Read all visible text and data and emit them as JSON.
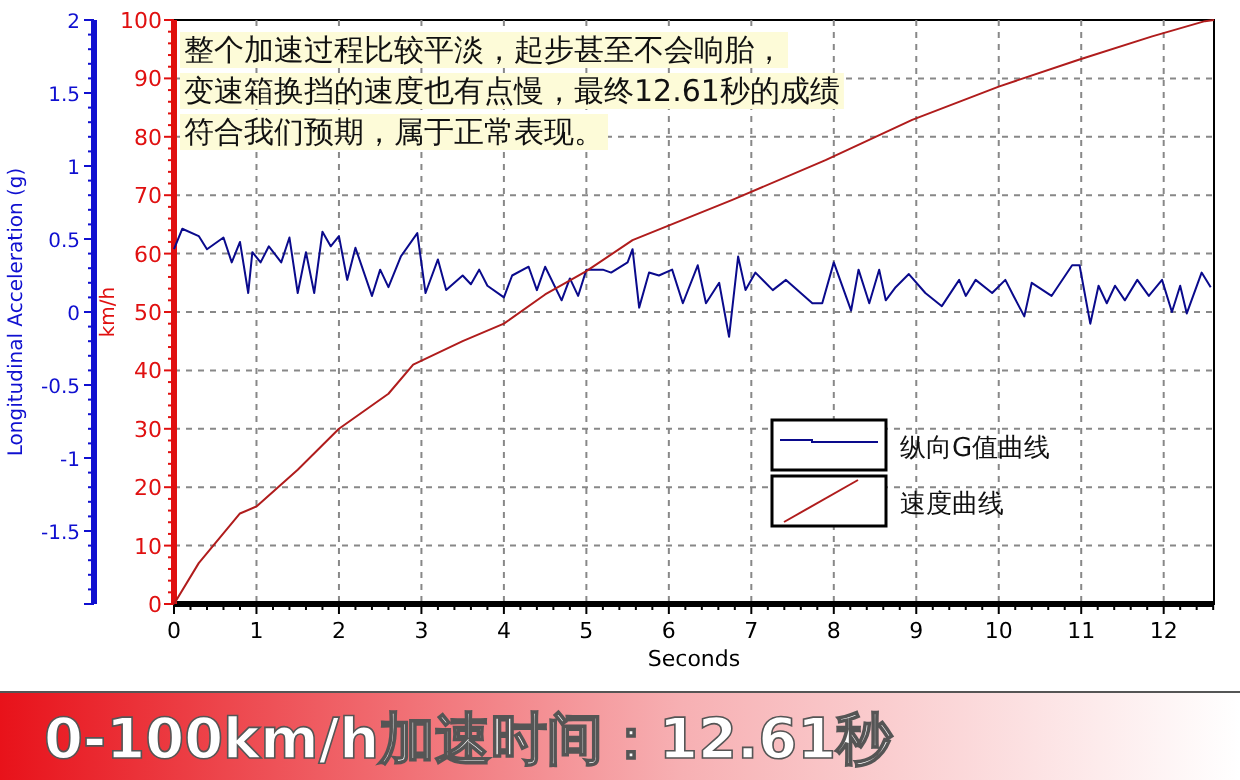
{
  "chart_data": {
    "type": "line",
    "title": "0-100km/h加速时间：12.61秒",
    "xlabel": "Seconds",
    "ylabel": "km/h",
    "y2label": "Longitudinal Acceleration (g)",
    "annotations": [
      "整个加速过程比较平淡，起步甚至不会响胎，",
      "变速箱换挡的速度也有点慢，最终12.61秒的成绩",
      "符合我们预期，属于正常表现。"
    ],
    "xlim": [
      0,
      12.61
    ],
    "xticks": [
      0,
      1,
      2,
      3,
      4,
      5,
      6,
      7,
      8,
      9,
      10,
      11,
      12
    ],
    "ylim": [
      0,
      100
    ],
    "yticks": [
      0,
      10,
      20,
      30,
      40,
      50,
      60,
      70,
      80,
      90,
      100
    ],
    "y2lim": [
      -2,
      2
    ],
    "y2ticks": [
      {
        "value": -2,
        "label": null
      },
      -1.5,
      -1,
      -0.5,
      0,
      0.5,
      1,
      1.5,
      2
    ],
    "grid": true,
    "legend": "right",
    "line_style": "solid",
    "marker": "none",
    "series": [
      {
        "name": "纵向G值曲线",
        "color": "#0a0a8c",
        "axis": "y2",
        "x": [
          0,
          0.1,
          0.3,
          0.4,
          0.6,
          0.7,
          0.8,
          0.9,
          0.95,
          1.05,
          1.15,
          1.3,
          1.4,
          1.5,
          1.6,
          1.7,
          1.8,
          1.9,
          2.0,
          2.1,
          2.2,
          2.4,
          2.5,
          2.6,
          2.75,
          2.95,
          3.05,
          3.2,
          3.3,
          3.5,
          3.6,
          3.7,
          3.8,
          4.0,
          4.1,
          4.3,
          4.4,
          4.5,
          4.7,
          4.8,
          4.9,
          5.0,
          5.2,
          5.3,
          5.5,
          5.56,
          5.64,
          5.76,
          5.88,
          6.04,
          6.17,
          6.35,
          6.45,
          6.61,
          6.73,
          6.84,
          6.93,
          7.05,
          7.26,
          7.42,
          7.74,
          7.86,
          8.0,
          8.21,
          8.3,
          8.43,
          8.55,
          8.63,
          8.75,
          8.91,
          9.11,
          9.31,
          9.52,
          9.6,
          9.72,
          9.92,
          10.08,
          10.18,
          10.31,
          10.4,
          10.64,
          10.89,
          10.98,
          11.11,
          11.21,
          11.31,
          11.41,
          11.53,
          11.68,
          11.82,
          11.98,
          12.1,
          12.2,
          12.28,
          12.46,
          12.57
        ],
        "values": [
          0.43,
          0.57,
          0.52,
          0.43,
          0.51,
          0.34,
          0.48,
          0.13,
          0.41,
          0.34,
          0.45,
          0.34,
          0.51,
          0.13,
          0.41,
          0.13,
          0.55,
          0.45,
          0.52,
          0.22,
          0.44,
          0.11,
          0.29,
          0.17,
          0.38,
          0.54,
          0.13,
          0.36,
          0.15,
          0.25,
          0.19,
          0.29,
          0.18,
          0.1,
          0.25,
          0.31,
          0.15,
          0.31,
          0.08,
          0.23,
          0.11,
          0.29,
          0.29,
          0.27,
          0.34,
          0.43,
          0.03,
          0.27,
          0.25,
          0.29,
          0.06,
          0.32,
          0.06,
          0.2,
          -0.17,
          0.38,
          0.15,
          0.27,
          0.15,
          0.22,
          0.06,
          0.06,
          0.34,
          0.01,
          0.29,
          0.06,
          0.29,
          0.08,
          0.17,
          0.26,
          0.13,
          0.04,
          0.22,
          0.11,
          0.22,
          0.13,
          0.22,
          0.11,
          -0.03,
          0.2,
          0.11,
          0.32,
          0.32,
          -0.08,
          0.18,
          0.06,
          0.18,
          0.08,
          0.22,
          0.11,
          0.22,
          0.0,
          0.18,
          -0.01,
          0.27,
          0.17
        ]
      },
      {
        "name": "速度曲线",
        "color": "#b01c1c",
        "x": [
          0,
          0.3,
          0.8,
          1.0,
          1.5,
          2.0,
          2.3,
          2.6,
          2.9,
          3.5,
          4.0,
          4.5,
          5.0,
          5.56,
          6.77,
          7.9,
          8.95,
          10.0,
          10.97,
          11.86,
          12.5,
          12.61
        ],
        "values": [
          0,
          7,
          15.5,
          16.7,
          23,
          30,
          33,
          36,
          41,
          45,
          48,
          53,
          57,
          62.3,
          69.2,
          76,
          82.9,
          88.6,
          93.2,
          97.2,
          99.8,
          100
        ]
      }
    ]
  }
}
